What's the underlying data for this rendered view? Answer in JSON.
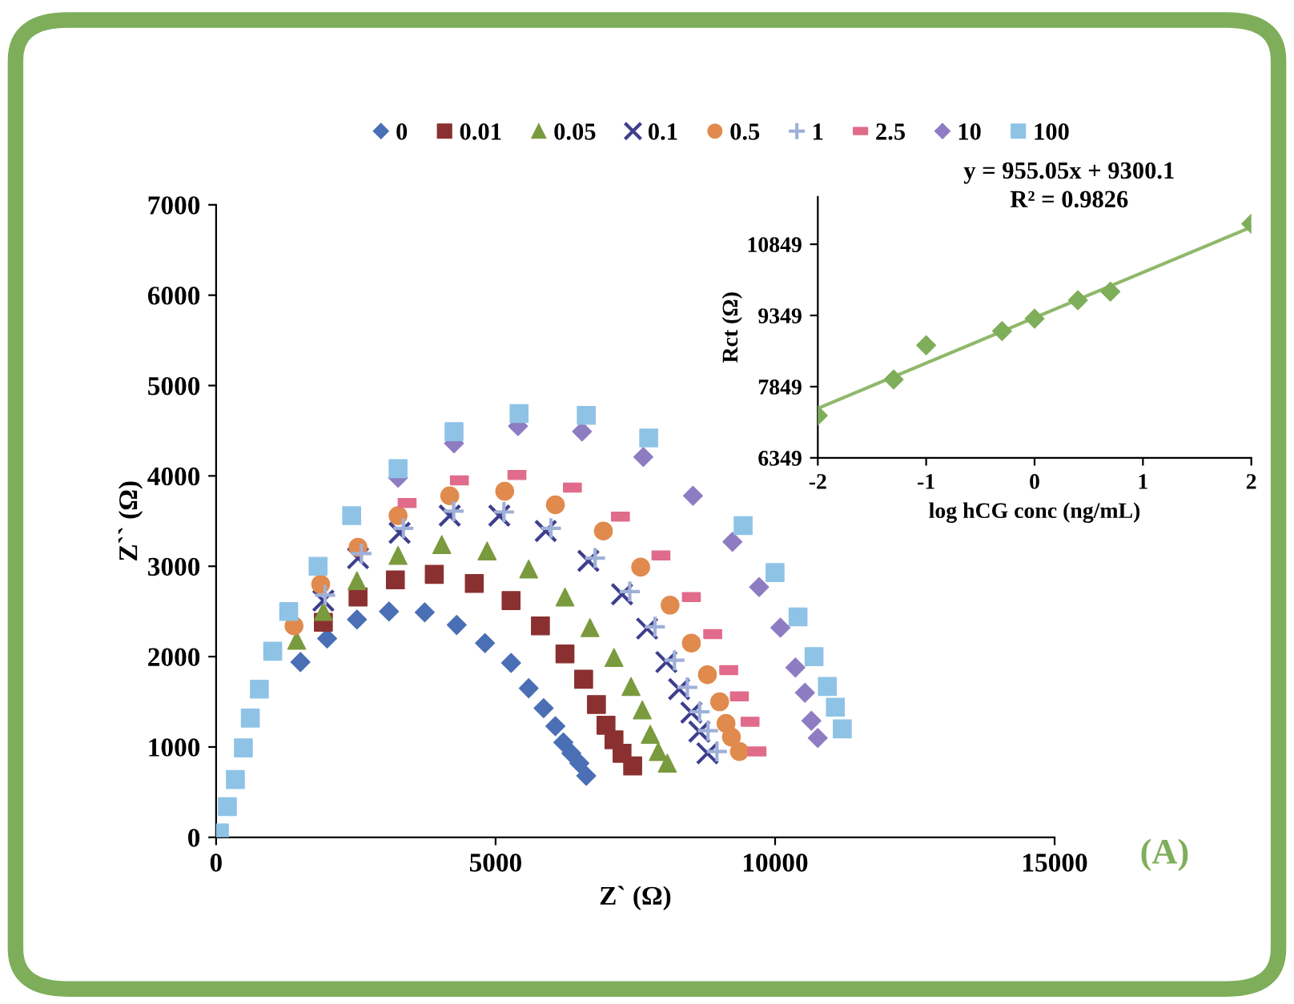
{
  "chart_data": [
    {
      "type": "scatter",
      "xlabel": "Z` (Ω)",
      "ylabel": "Z`` (Ω)",
      "xlim": [
        0,
        15000
      ],
      "ylim": [
        0,
        7000
      ],
      "xticks": [
        0,
        5000,
        10000,
        15000
      ],
      "yticks": [
        0,
        1000,
        2000,
        3000,
        4000,
        5000,
        6000,
        7000
      ],
      "legend": "top",
      "grid": false,
      "annotations": [
        "(A)"
      ],
      "series": [
        {
          "name": "0",
          "color": "#4a6fb5",
          "marker": "diamond",
          "x": [
            1509,
            1986,
            2520,
            3093,
            3732,
            4304,
            4810,
            5277,
            5592,
            5859,
            6069,
            6212,
            6355,
            6498,
            6622
          ],
          "values": [
            1940,
            2200,
            2410,
            2500,
            2490,
            2350,
            2150,
            1930,
            1650,
            1430,
            1230,
            1050,
            930,
            820,
            680
          ]
        },
        {
          "name": "0.01",
          "color": "#8b3030",
          "marker": "square",
          "x": [
            1919,
            2539,
            3207,
            3903,
            4619,
            5277,
            5802,
            6241,
            6575,
            6804,
            6975,
            7118,
            7262,
            7452
          ],
          "values": [
            2380,
            2660,
            2850,
            2910,
            2810,
            2620,
            2340,
            2030,
            1750,
            1470,
            1240,
            1080,
            930,
            790
          ]
        },
        {
          "name": "0.05",
          "color": "#7a9a3e",
          "marker": "triangle",
          "x": [
            1442,
            1919,
            2520,
            3255,
            4037,
            4848,
            5592,
            6241,
            6689,
            7118,
            7423,
            7624,
            7767,
            7910,
            8072
          ],
          "values": [
            2180,
            2500,
            2840,
            3120,
            3240,
            3170,
            2970,
            2660,
            2320,
            1990,
            1670,
            1410,
            1140,
            950,
            820
          ]
        },
        {
          "name": "0.1",
          "color": "#3e3e8e",
          "marker": "cross",
          "x": [
            1919,
            2539,
            3283,
            4180,
            5067,
            5897,
            6660,
            7262,
            7710,
            8054,
            8283,
            8502,
            8645,
            8789
          ],
          "values": [
            2620,
            3090,
            3370,
            3560,
            3560,
            3390,
            3060,
            2690,
            2310,
            1940,
            1640,
            1380,
            1170,
            930
          ]
        },
        {
          "name": "0.5",
          "color": "#e08a4e",
          "marker": "circle",
          "x": [
            1394,
            1871,
            2539,
            3255,
            4180,
            5163,
            6069,
            6928,
            7595,
            8121,
            8502,
            8789,
            9008,
            9122,
            9218,
            9361
          ],
          "values": [
            2340,
            2800,
            3210,
            3560,
            3780,
            3830,
            3680,
            3390,
            2990,
            2570,
            2150,
            1800,
            1500,
            1260,
            1110,
            950
          ]
        },
        {
          "name": "1",
          "color": "#9fb0d8",
          "marker": "plus",
          "x": [
            1950,
            2600,
            3350,
            4250,
            5150,
            5990,
            6780,
            7400,
            7850,
            8200,
            8430,
            8650,
            8800,
            8960
          ],
          "values": [
            2680,
            3140,
            3420,
            3610,
            3600,
            3420,
            3090,
            2720,
            2330,
            1960,
            1660,
            1390,
            1180,
            950
          ]
        },
        {
          "name": "2.5",
          "color": "#e06b8a",
          "x": [
            3417,
            4352,
            5382,
            6374,
            7233,
            7958,
            8502,
            8884,
            9170,
            9361,
            9552,
            9676
          ],
          "values": [
            3700,
            3950,
            4010,
            3870,
            3550,
            3120,
            2660,
            2250,
            1850,
            1560,
            1280,
            950
          ]
        },
        {
          "name": "10",
          "color": "#8e7cc3",
          "marker": "diamond",
          "x": [
            3255,
            4256,
            5401,
            6546,
            7643,
            8531,
            9237,
            9714,
            10095,
            10363,
            10534,
            10649,
            10763
          ],
          "values": [
            3980,
            4360,
            4550,
            4490,
            4210,
            3780,
            3270,
            2770,
            2320,
            1880,
            1600,
            1290,
            1100
          ]
        },
        {
          "name": "100",
          "color": "#8ec3e6",
          "marker": "square",
          "x": [
            59,
            202,
            345,
            488,
            612,
            774,
            1013,
            1299,
            1824,
            2425,
            3255,
            4256,
            5420,
            6622,
            7739,
            9428,
            9999,
            10410,
            10697,
            10935,
            11078,
            11202
          ],
          "values": [
            50,
            340,
            640,
            990,
            1320,
            1640,
            2060,
            2500,
            3000,
            3560,
            4080,
            4490,
            4690,
            4670,
            4420,
            3450,
            2930,
            2440,
            2000,
            1670,
            1440,
            1200
          ]
        }
      ]
    },
    {
      "type": "scatter",
      "xlabel": "log hCG conc (ng/mL)",
      "ylabel": "Rct (Ω)",
      "xlim": [
        -2,
        2
      ],
      "ylim": [
        6349,
        11849
      ],
      "xticks": [
        -2,
        -1,
        0,
        1,
        2
      ],
      "yticks": [
        6349,
        7849,
        9349,
        10849
      ],
      "grid": false,
      "legend": false,
      "annotations": [
        "y = 955.05x + 9300.1",
        "R² = 0.9826"
      ],
      "series": [
        {
          "type": "line",
          "color": "#8fb86a",
          "x": [
            -2,
            2
          ],
          "values": [
            7390,
            11210
          ]
        },
        {
          "type": "scatter",
          "color": "#7fae5a",
          "marker": "diamond",
          "x": [
            -2,
            -1.3,
            -1,
            -0.3,
            0,
            0.4,
            0.7,
            2
          ],
          "values": [
            7240,
            8000,
            8720,
            9020,
            9280,
            9670,
            9850,
            11280
          ]
        }
      ]
    }
  ]
}
